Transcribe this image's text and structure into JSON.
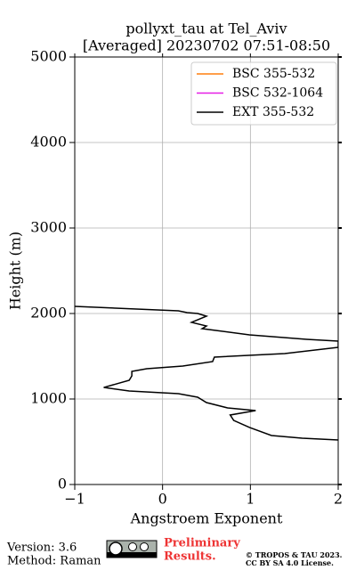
{
  "chart_data": {
    "type": "line",
    "title": "pollyxt_tau at Tel_Aviv",
    "subtitle": "[Averaged] 20230702 07:51-08:50",
    "x_label": "Angstroem Exponent",
    "y_label": "Height (m)",
    "xlim": [
      -1,
      2
    ],
    "ylim": [
      0,
      5000
    ],
    "xticks": [
      {
        "value": -1,
        "label": "−1"
      },
      0,
      1,
      2
    ],
    "yticks": [
      0,
      1000,
      2000,
      3000,
      4000,
      5000
    ],
    "grid": true,
    "legend": "upper right",
    "series": [
      {
        "name": "BSC 355-532",
        "color": "#ff7f0e",
        "values": [],
        "heights": []
      },
      {
        "name": "BSC 532-1064",
        "color": "#e61ee6",
        "values": [],
        "heights": []
      },
      {
        "name": "EXT 355-532",
        "color": "#000000",
        "values": [
          -1,
          0.18,
          0.28,
          0.4,
          0.5,
          0.33,
          0.5,
          0.45,
          0.99,
          1.64,
          2.0,
          2.0,
          1.39,
          0.59,
          0.57,
          0.23,
          -0.18,
          -0.35,
          -0.35,
          -0.38,
          -0.67,
          -0.38,
          0.18,
          0.4,
          0.5,
          0.74,
          1.06,
          0.77,
          0.81,
          0.99,
          1.24,
          1.59,
          2.0
        ],
        "heights": [
          2083,
          2031,
          2010,
          2000,
          1969,
          1896,
          1854,
          1823,
          1750,
          1698,
          1677,
          1604,
          1531,
          1490,
          1438,
          1385,
          1354,
          1323,
          1271,
          1219,
          1135,
          1094,
          1063,
          1021,
          958,
          896,
          865,
          813,
          750,
          667,
          573,
          542,
          521
        ]
      }
    ]
  },
  "footer": {
    "version": "Version: 3.6",
    "method": "Method: Raman",
    "notice": [
      "Preliminary",
      "Results."
    ],
    "copyright": [
      "© TROPOS & TAU 2023.",
      "CC BY SA 4.0 License."
    ]
  }
}
